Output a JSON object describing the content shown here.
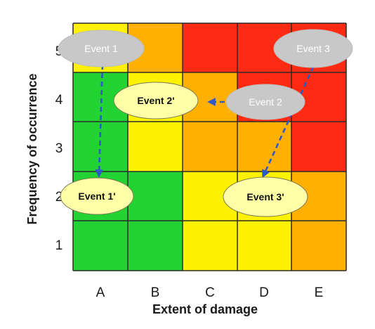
{
  "colors": {
    "red": "#ff2a12",
    "orange": "#ffb000",
    "yellow": "#fff200",
    "green": "#22d433",
    "grid_line": "#2b2b2b",
    "arrow": "#2d58c8",
    "event_gray": "#c8c8c8",
    "event_yellow": "#ffffa8"
  },
  "x_axis": {
    "label": "Extent of damage",
    "ticks": [
      "A",
      "B",
      "C",
      "D",
      "E"
    ]
  },
  "y_axis": {
    "label": "Frequency of occurrence",
    "ticks": [
      "5",
      "4",
      "3",
      "2",
      "1"
    ]
  },
  "matrix": [
    [
      "yellow",
      "orange",
      "red",
      "red",
      "red"
    ],
    [
      "green",
      "yellow",
      "orange",
      "red",
      "red"
    ],
    [
      "green",
      "yellow",
      "orange",
      "orange",
      "red"
    ],
    [
      "green",
      "green",
      "yellow",
      "yellow",
      "orange"
    ],
    [
      "green",
      "green",
      "yellow",
      "yellow",
      "orange"
    ]
  ],
  "events": {
    "event1": "Event 1",
    "event2": "Event 2",
    "event3": "Event 3",
    "event1_prime": "Event 1'",
    "event2_prime": "Event 2'",
    "event3_prime": "Event 3'"
  }
}
